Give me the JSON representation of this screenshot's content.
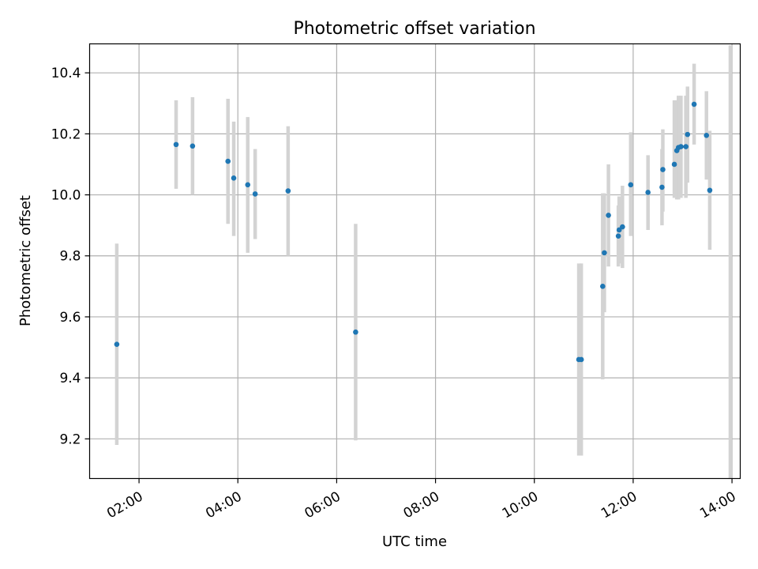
{
  "chart_data": {
    "type": "scatter",
    "title": "Photometric offset variation",
    "xlabel": "UTC time",
    "ylabel": "Photometric offset",
    "x_is_time": true,
    "xlim": [
      "01:00",
      "14:10"
    ],
    "ylim": [
      9.07,
      10.495
    ],
    "x_ticks": [
      "02:00",
      "04:00",
      "06:00",
      "08:00",
      "10:00",
      "12:00",
      "14:00"
    ],
    "y_ticks": [
      9.2,
      9.4,
      9.6,
      9.8,
      10.0,
      10.2,
      10.4
    ],
    "grid": true,
    "point_color": "#1f77b4",
    "errorbar_color": "#d3d3d3",
    "points": [
      {
        "x": "01:33",
        "y": 9.51,
        "lo": 9.18,
        "hi": 9.84
      },
      {
        "x": "02:45",
        "y": 10.165,
        "lo": 10.02,
        "hi": 10.31
      },
      {
        "x": "03:05",
        "y": 10.16,
        "lo": 10.0,
        "hi": 10.32
      },
      {
        "x": "03:48",
        "y": 10.11,
        "lo": 9.905,
        "hi": 10.315
      },
      {
        "x": "03:55",
        "y": 10.055,
        "lo": 9.865,
        "hi": 10.24
      },
      {
        "x": "04:12",
        "y": 10.033,
        "lo": 9.81,
        "hi": 10.255
      },
      {
        "x": "04:21",
        "y": 10.003,
        "lo": 9.855,
        "hi": 10.15
      },
      {
        "x": "05:01",
        "y": 10.013,
        "lo": 9.8,
        "hi": 10.225
      },
      {
        "x": "06:23",
        "y": 9.55,
        "lo": 9.195,
        "hi": 9.905
      },
      {
        "x": "10:54",
        "y": 9.46,
        "lo": 9.145,
        "hi": 9.775
      },
      {
        "x": "10:57",
        "y": 9.46,
        "lo": 9.145,
        "hi": 9.775
      },
      {
        "x": "11:23",
        "y": 9.7,
        "lo": 9.395,
        "hi": 10.005
      },
      {
        "x": "11:25",
        "y": 9.81,
        "lo": 9.615,
        "hi": 10.005
      },
      {
        "x": "11:30",
        "y": 9.933,
        "lo": 9.765,
        "hi": 10.1
      },
      {
        "x": "11:42",
        "y": 9.865,
        "lo": 9.765,
        "hi": 9.965
      },
      {
        "x": "11:43",
        "y": 9.885,
        "lo": 9.775,
        "hi": 9.995
      },
      {
        "x": "11:47",
        "y": 9.895,
        "lo": 9.76,
        "hi": 10.03
      },
      {
        "x": "11:57",
        "y": 10.033,
        "lo": 9.865,
        "hi": 10.205
      },
      {
        "x": "12:18",
        "y": 10.008,
        "lo": 9.885,
        "hi": 10.13
      },
      {
        "x": "12:35",
        "y": 10.025,
        "lo": 9.9,
        "hi": 10.15
      },
      {
        "x": "12:36",
        "y": 10.083,
        "lo": 9.945,
        "hi": 10.215
      },
      {
        "x": "12:50",
        "y": 10.1,
        "lo": 9.99,
        "hi": 10.31
      },
      {
        "x": "12:53",
        "y": 10.145,
        "lo": 9.985,
        "hi": 10.31
      },
      {
        "x": "12:55",
        "y": 10.155,
        "lo": 9.985,
        "hi": 10.325
      },
      {
        "x": "12:58",
        "y": 10.158,
        "lo": 9.99,
        "hi": 10.325
      },
      {
        "x": "13:04",
        "y": 10.158,
        "lo": 9.99,
        "hi": 10.325
      },
      {
        "x": "13:06",
        "y": 10.198,
        "lo": 10.04,
        "hi": 10.355
      },
      {
        "x": "13:14",
        "y": 10.297,
        "lo": 10.165,
        "hi": 10.43
      },
      {
        "x": "13:29",
        "y": 10.195,
        "lo": 10.05,
        "hi": 10.34
      },
      {
        "x": "13:33",
        "y": 10.015,
        "lo": 9.82,
        "hi": 10.21
      },
      {
        "x": "13:58",
        "y": null,
        "lo": 9.07,
        "hi": 10.49
      }
    ]
  }
}
